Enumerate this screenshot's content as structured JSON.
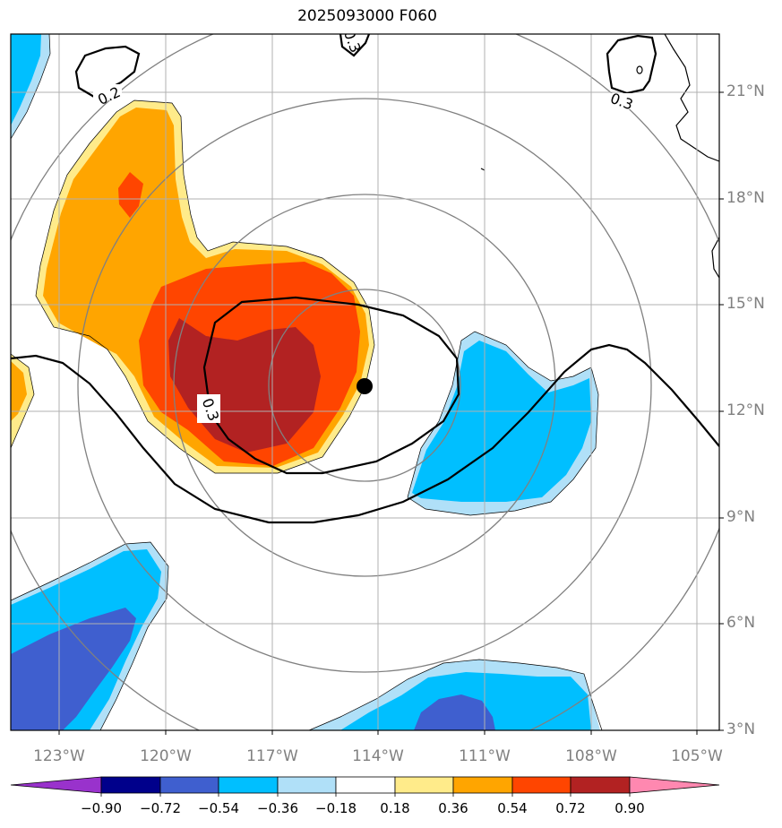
{
  "title": "2025093000 F060",
  "lat_labels": [
    "21°N",
    "18°N",
    "15°N",
    "12°N",
    "9°N",
    "6°N",
    "3°N"
  ],
  "lon_labels": [
    "123°W",
    "120°W",
    "117°W",
    "114°W",
    "111°W",
    "108°W",
    "105°W"
  ],
  "contour_labels": [
    "0.2",
    "0.3",
    "0.3",
    "0.3"
  ],
  "colorbar": {
    "ticks": [
      "−0.90",
      "−0.72",
      "−0.54",
      "−0.36",
      "−0.18",
      "0.18",
      "0.36",
      "0.54",
      "0.72",
      "0.90"
    ],
    "colors": [
      "#9932cc",
      "#00008b",
      "#3f5fcf",
      "#00bfff",
      "#b0e0f8",
      "#ffffff",
      "#ffeb8a",
      "#ffa500",
      "#ff4500",
      "#b22222",
      "#ff88b0"
    ]
  },
  "storm_center": {
    "lat": 12.6,
    "lon": -114.4
  }
}
